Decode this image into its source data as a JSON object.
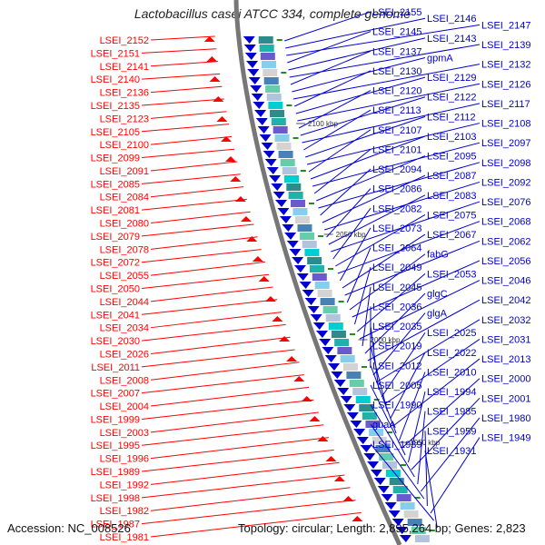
{
  "title": "Lactobacillus casei ATCC 334, complete genome",
  "accession": "Accession: NC_008526",
  "topology": "Topology: circular; Length: 2,895,264 bp; Genes: 2,823",
  "colors": {
    "forward": "#ff0000",
    "reverse": "#0000cc",
    "backbone": "#777777",
    "tick": "#228b22"
  },
  "ticks": [
    "2100 kbp",
    "2050 kbp",
    "2000 kbp",
    "1950 kbp"
  ],
  "left_labels": [
    "LSEI_2152",
    "LSEI_2151",
    "LSEI_2141",
    "LSEI_2140",
    "LSEI_2136",
    "LSEI_2135",
    "LSEI_2123",
    "LSEI_2105",
    "LSEI_2100",
    "LSEI_2099",
    "LSEI_2091",
    "LSEI_2085",
    "LSEI_2084",
    "LSEI_2081",
    "LSEI_2080",
    "LSEI_2079",
    "LSEI_2078",
    "LSEI_2072",
    "LSEI_2055",
    "LSEI_2050",
    "LSEI_2044",
    "LSEI_2041",
    "LSEI_2034",
    "LSEI_2030",
    "LSEI_2026",
    "LSEI_2011",
    "LSEI_2008",
    "LSEI_2007",
    "LSEI_2004",
    "LSEI_1999",
    "LSEI_2003",
    "LSEI_1995",
    "LSEI_1996",
    "LSEI_1989",
    "LSEI_1992",
    "LSEI_1998",
    "LSEI_1982",
    "LSEI_1987",
    "LSEI_1981"
  ],
  "right_labels": [
    "LSEI_2155",
    "LSEI_2146",
    "LSEI_2147",
    "LSEI_2145",
    "LSEI_2143",
    "LSEI_2139",
    "LSEI_2137",
    "gpmA",
    "LSEI_2132",
    "LSEI_2130",
    "LSEI_2129",
    "LSEI_2126",
    "LSEI_2120",
    "LSEI_2122",
    "LSEI_2117",
    "LSEI_2113",
    "LSEI_2112",
    "LSEI_2108",
    "LSEI_2107",
    "LSEI_2103",
    "LSEI_2097",
    "LSEI_2101",
    "LSEI_2095",
    "LSEI_2098",
    "LSEI_2094",
    "LSEI_2087",
    "LSEI_2092",
    "LSEI_2086",
    "LSEI_2083",
    "LSEI_2076",
    "LSEI_2082",
    "LSEI_2075",
    "LSEI_2068",
    "LSEI_2073",
    "LSEI_2067",
    "LSEI_2062",
    "LSEI_2064",
    "fabG",
    "LSEI_2056",
    "LSEI_2049",
    "LSEI_2053",
    "LSEI_2046",
    "LSEI_2045",
    "glgC",
    "LSEI_2042",
    "LSEI_2036",
    "glgA",
    "LSEI_2032",
    "LSEI_2035",
    "LSEI_2025",
    "LSEI_2031",
    "LSEI_2019",
    "LSEI_2022",
    "LSEI_2013",
    "LSEI_2012",
    "LSEI_2010",
    "LSEI_2000",
    "LSEI_2005",
    "LSEI_1994",
    "LSEI_2001",
    "LSEI_1990",
    "LSEI_1985",
    "LSEI_1980",
    "guaA",
    "LSEI_1959",
    "LSEI_1949",
    "LSEI_1939",
    "LSEI_1931"
  ]
}
